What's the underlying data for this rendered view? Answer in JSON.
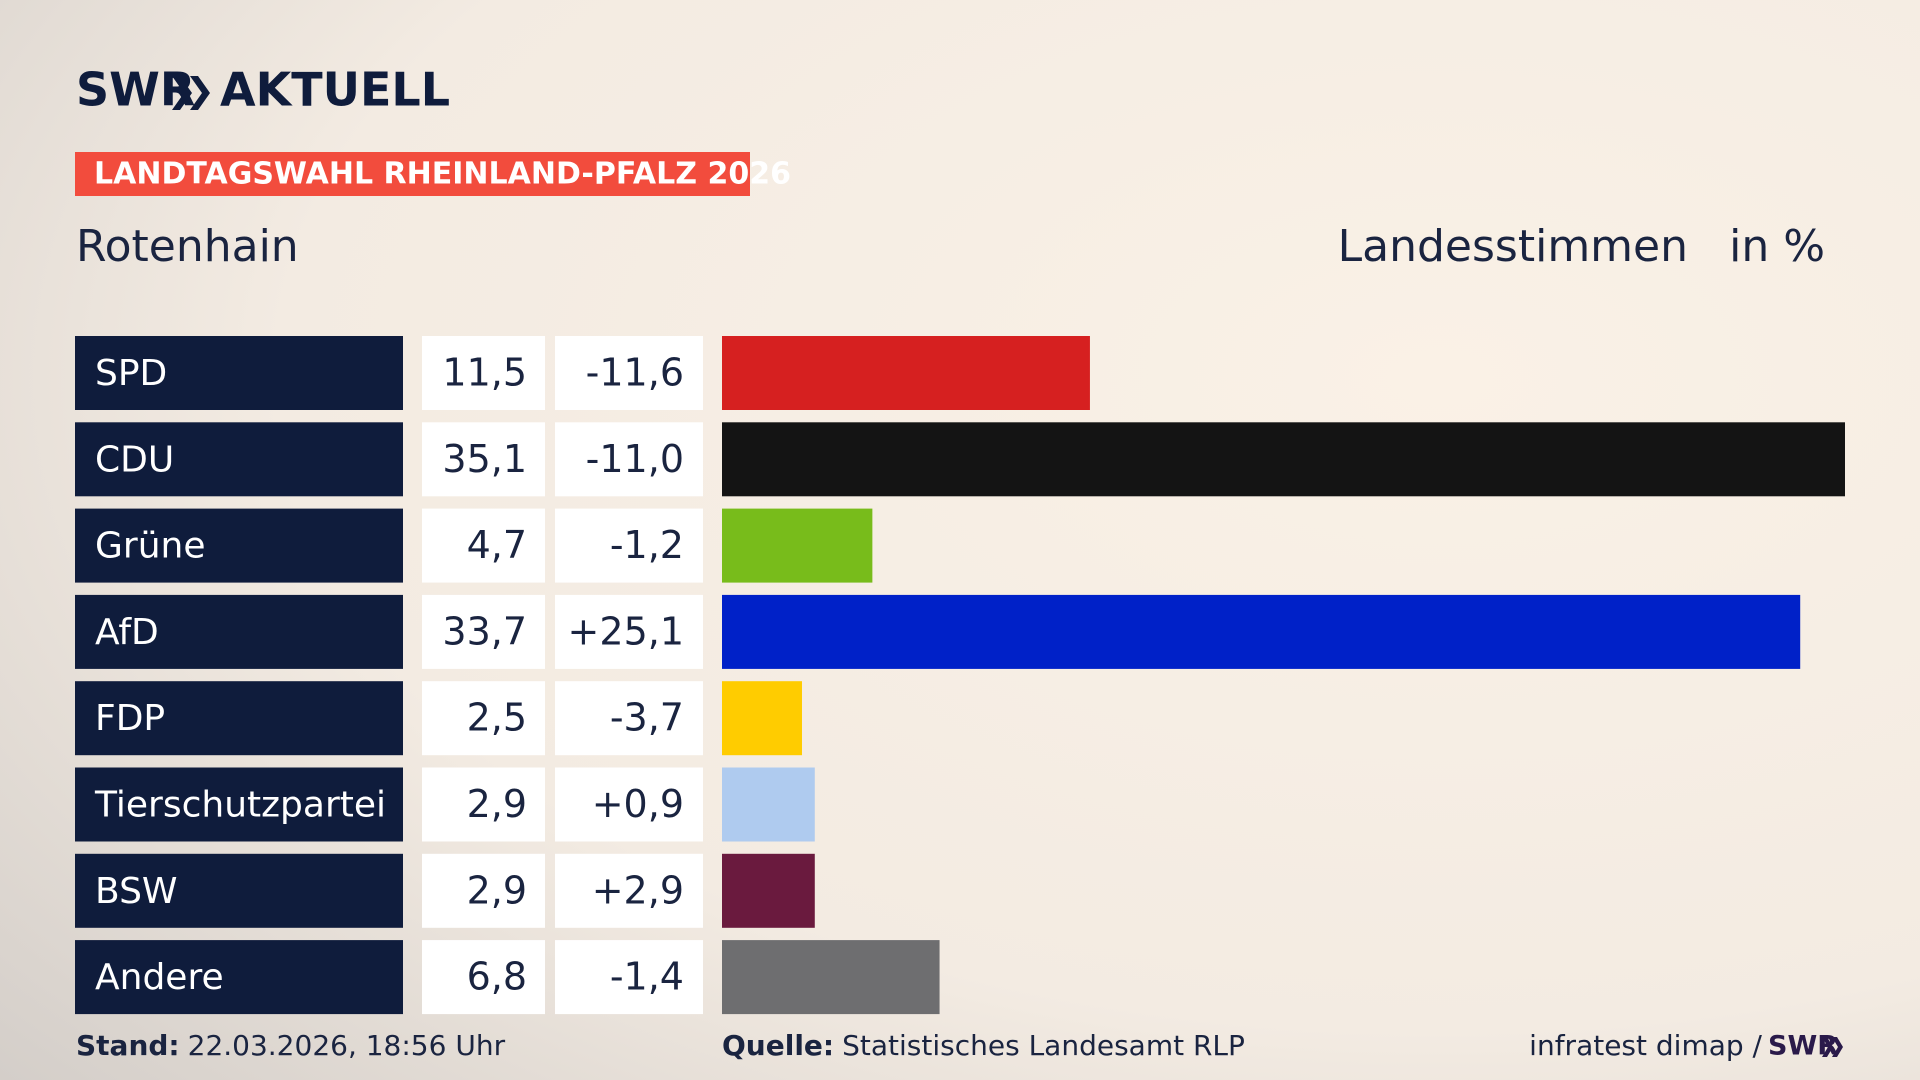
{
  "chart_data": {
    "type": "bar",
    "logo": {
      "brand": "SWR",
      "product": "AKTUELL"
    },
    "title": "LANDTAGSWAHL RHEINLAND-PFALZ 2026",
    "subtitle": "Rotenhain",
    "measure": "Landesstimmen",
    "unit": "in %",
    "categories": [
      "SPD",
      "CDU",
      "Grüne",
      "AfD",
      "FDP",
      "Tierschutzpartei",
      "BSW",
      "Andere"
    ],
    "values": [
      11.5,
      35.1,
      4.7,
      33.7,
      2.5,
      2.9,
      2.9,
      6.8
    ],
    "value_labels": [
      "11,5",
      "35,1",
      "4,7",
      "33,7",
      "2,5",
      "2,9",
      "2,9",
      "6,8"
    ],
    "changes": [
      -11.6,
      -11.0,
      -1.2,
      25.1,
      -3.7,
      0.9,
      2.9,
      -1.4
    ],
    "change_labels": [
      "-11,6",
      "-11,0",
      "-1,2",
      "+25,1",
      "-3,7",
      "+0,9",
      "+2,9",
      "-1,4"
    ],
    "colors": [
      "#d62020",
      "#141414",
      "#78bc1b",
      "#0021c8",
      "#ffcc00",
      "#afcbef",
      "#6a1a3e",
      "#6e6e70"
    ],
    "footer": {
      "date_label": "Stand:",
      "date": "22.03.2026, 18:56 Uhr",
      "source_label": "Quelle:",
      "source": "Statistisches Landesamt RLP",
      "credit": "infratest dimap /",
      "credit_brand": "SWR"
    }
  }
}
